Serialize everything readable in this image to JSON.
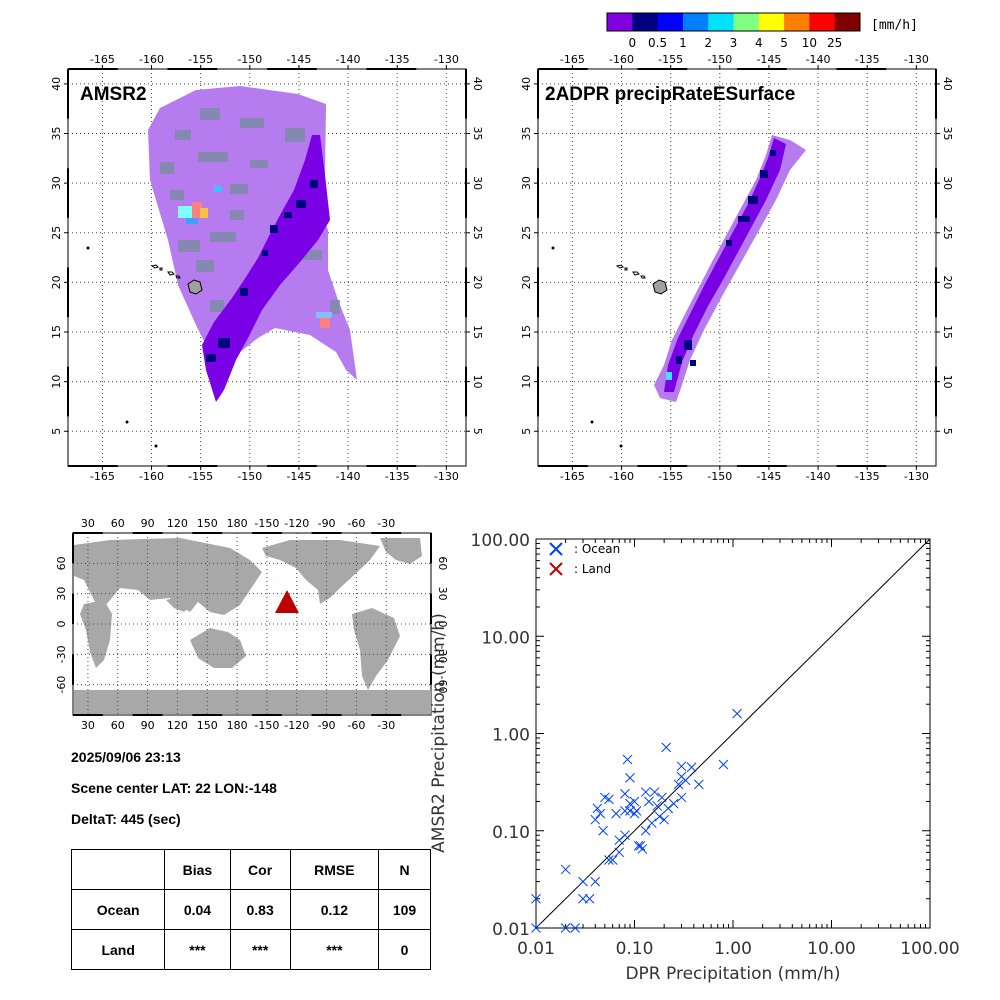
{
  "colorbar": {
    "unit": "[mm/h]",
    "colors": [
      "#8000e0",
      "#000080",
      "#0000ff",
      "#0080ff",
      "#00e0ff",
      "#80ff80",
      "#ffff00",
      "#ff8000",
      "#ff0000",
      "#800000"
    ],
    "labels": [
      "0",
      "0.5",
      "1",
      "2",
      "3",
      "4",
      "5",
      "10",
      "25"
    ]
  },
  "maps": {
    "lon_ticks": [
      "-165",
      "-160",
      "-155",
      "-150",
      "-145",
      "-140",
      "-135",
      "-130"
    ],
    "lat_ticks": [
      "40",
      "35",
      "30",
      "25",
      "20",
      "15",
      "10",
      "5"
    ],
    "left_title": "AMSR2",
    "right_title": "2ADPR precipRateESurface"
  },
  "world_map": {
    "lon_ticks": [
      "30",
      "60",
      "90",
      "120",
      "150",
      "180",
      "-150",
      "-120",
      "-90",
      "-60",
      "-30"
    ],
    "lat_ticks": [
      "60",
      "30",
      "0",
      "-30",
      "-60"
    ],
    "marker_color": "#c00000"
  },
  "info": {
    "datetime": "2025/09/06 23:13",
    "scene_center": "Scene center LAT: 22   LON:-148",
    "delta_t": "DeltaT:  445 (sec)"
  },
  "stats_table": {
    "headers": [
      "",
      "Bias",
      "Cor",
      "RMSE",
      "N"
    ],
    "rows": [
      [
        "Ocean",
        "0.04",
        "0.83",
        "0.12",
        "109"
      ],
      [
        "Land",
        "***",
        "***",
        "***",
        "0"
      ]
    ]
  },
  "chart_data": {
    "type": "scatter",
    "xlabel": "DPR Precipitation (mm/h)",
    "ylabel": "AMSR2 Precipitation (mm/h)",
    "xscale": "log",
    "yscale": "log",
    "xlim": [
      0.01,
      100
    ],
    "ylim": [
      0.01,
      100
    ],
    "x_tick_labels": [
      "0.01",
      "0.10",
      "1.00",
      "10.00",
      "100.00"
    ],
    "y_tick_labels": [
      "0.01",
      "0.10",
      "1.00",
      "10.00",
      "100.00"
    ],
    "legend_position": "top-left",
    "one_to_one_line": true,
    "series": [
      {
        "name": ": Ocean",
        "color": "#0040ff",
        "x": [
          0.01,
          0.01,
          0.02,
          0.02,
          0.025,
          0.03,
          0.03,
          0.035,
          0.04,
          0.04,
          0.042,
          0.045,
          0.048,
          0.05,
          0.055,
          0.055,
          0.06,
          0.065,
          0.07,
          0.07,
          0.08,
          0.08,
          0.085,
          0.09,
          0.09,
          0.1,
          0.1,
          0.105,
          0.11,
          0.115,
          0.12,
          0.13,
          0.13,
          0.14,
          0.15,
          0.16,
          0.17,
          0.18,
          0.19,
          0.2,
          0.21,
          0.22,
          0.25,
          0.28,
          0.3,
          0.3,
          0.33,
          0.38,
          0.45,
          0.8,
          1.1,
          0.08,
          0.09,
          0.3
        ],
        "y": [
          0.01,
          0.02,
          0.04,
          0.01,
          0.01,
          0.03,
          0.02,
          0.02,
          0.03,
          0.13,
          0.17,
          0.15,
          0.1,
          0.22,
          0.05,
          0.21,
          0.05,
          0.15,
          0.06,
          0.08,
          0.09,
          0.16,
          0.54,
          0.16,
          0.35,
          0.2,
          0.15,
          0.16,
          0.07,
          0.07,
          0.065,
          0.1,
          0.25,
          0.2,
          0.12,
          0.25,
          0.18,
          0.14,
          0.22,
          0.13,
          0.72,
          0.17,
          0.19,
          0.3,
          0.22,
          0.46,
          0.33,
          0.45,
          0.3,
          0.48,
          1.6,
          0.24,
          0.19,
          0.36
        ]
      },
      {
        "name": ": Land",
        "color": "#c00000",
        "x": [],
        "y": []
      }
    ]
  }
}
